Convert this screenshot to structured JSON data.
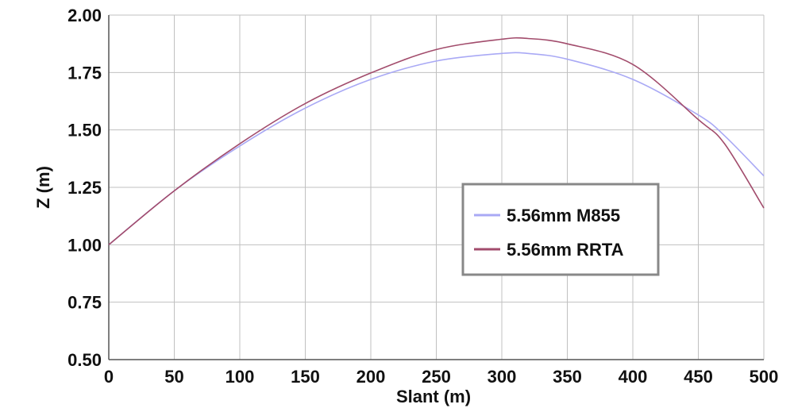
{
  "chart_data": {
    "type": "line",
    "title": "",
    "xlabel": "Slant (m)",
    "ylabel": "Z (m)",
    "xlim": [
      0,
      500
    ],
    "ylim": [
      0.5,
      2.0
    ],
    "x_ticks": [
      0,
      50,
      100,
      150,
      200,
      250,
      300,
      350,
      400,
      450,
      500
    ],
    "x_tick_labels": [
      "0",
      "50",
      "100",
      "150",
      "200",
      "250",
      "300",
      "350",
      "400",
      "450",
      "500"
    ],
    "y_ticks": [
      0.5,
      0.75,
      1.0,
      1.25,
      1.5,
      1.75,
      2.0
    ],
    "y_tick_labels": [
      "0.50",
      "0.75",
      "1.00",
      "1.25",
      "1.50",
      "1.75",
      "2.00"
    ],
    "grid": true,
    "legend_position": "center-right",
    "x": [
      0,
      50,
      100,
      150,
      200,
      250,
      300,
      320,
      350,
      400,
      450,
      470,
      500
    ],
    "series": [
      {
        "name": "5.56mm M855",
        "color": "#a9a9f5",
        "values": [
          1.0,
          1.235,
          1.43,
          1.595,
          1.72,
          1.8,
          1.833,
          1.833,
          1.808,
          1.72,
          1.565,
          1.475,
          1.3
        ]
      },
      {
        "name": "5.56mm RRTA",
        "color": "#a24c6c",
        "values": [
          1.0,
          1.235,
          1.44,
          1.615,
          1.748,
          1.85,
          1.895,
          1.898,
          1.875,
          1.785,
          1.545,
          1.44,
          1.16
        ]
      }
    ]
  }
}
